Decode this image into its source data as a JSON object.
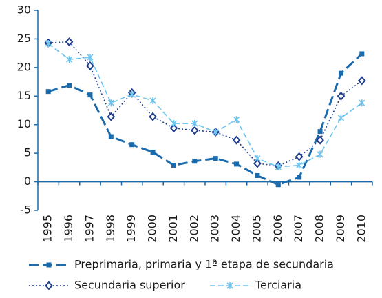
{
  "chart_data": {
    "type": "line",
    "categories": [
      "1995",
      "1996",
      "1997",
      "1998",
      "1999",
      "2000",
      "2001",
      "2002",
      "2003",
      "2004",
      "2005",
      "2006",
      "2007",
      "2008",
      "2009",
      "2010"
    ],
    "series": [
      {
        "name": "Preprimaria, primaria y 1ª etapa de secundaria",
        "color": "#1b6aab",
        "marker": "square",
        "values": [
          15.8,
          16.9,
          15.2,
          7.9,
          6.5,
          5.2,
          2.9,
          3.6,
          4.1,
          3.1,
          1.1,
          -0.5,
          0.8,
          8.8,
          19.0,
          22.4
        ]
      },
      {
        "name": "Secundaria superior",
        "color": "#1f3d8c",
        "marker": "diamond",
        "values": [
          24.3,
          24.5,
          20.3,
          11.4,
          15.6,
          11.4,
          9.4,
          9.0,
          8.7,
          7.3,
          3.2,
          2.8,
          4.4,
          7.3,
          15.0,
          17.7
        ]
      },
      {
        "name": "Terciaria",
        "color": "#6cc4ee",
        "marker": "star",
        "values": [
          24.2,
          21.4,
          21.8,
          13.8,
          15.3,
          14.2,
          10.2,
          10.2,
          8.7,
          10.9,
          4.1,
          2.6,
          2.9,
          4.8,
          11.2,
          13.8
        ]
      }
    ],
    "ylim": [
      -5,
      30
    ],
    "yticks": [
      -5,
      0,
      5,
      10,
      15,
      20,
      25,
      30
    ],
    "grid": false
  }
}
